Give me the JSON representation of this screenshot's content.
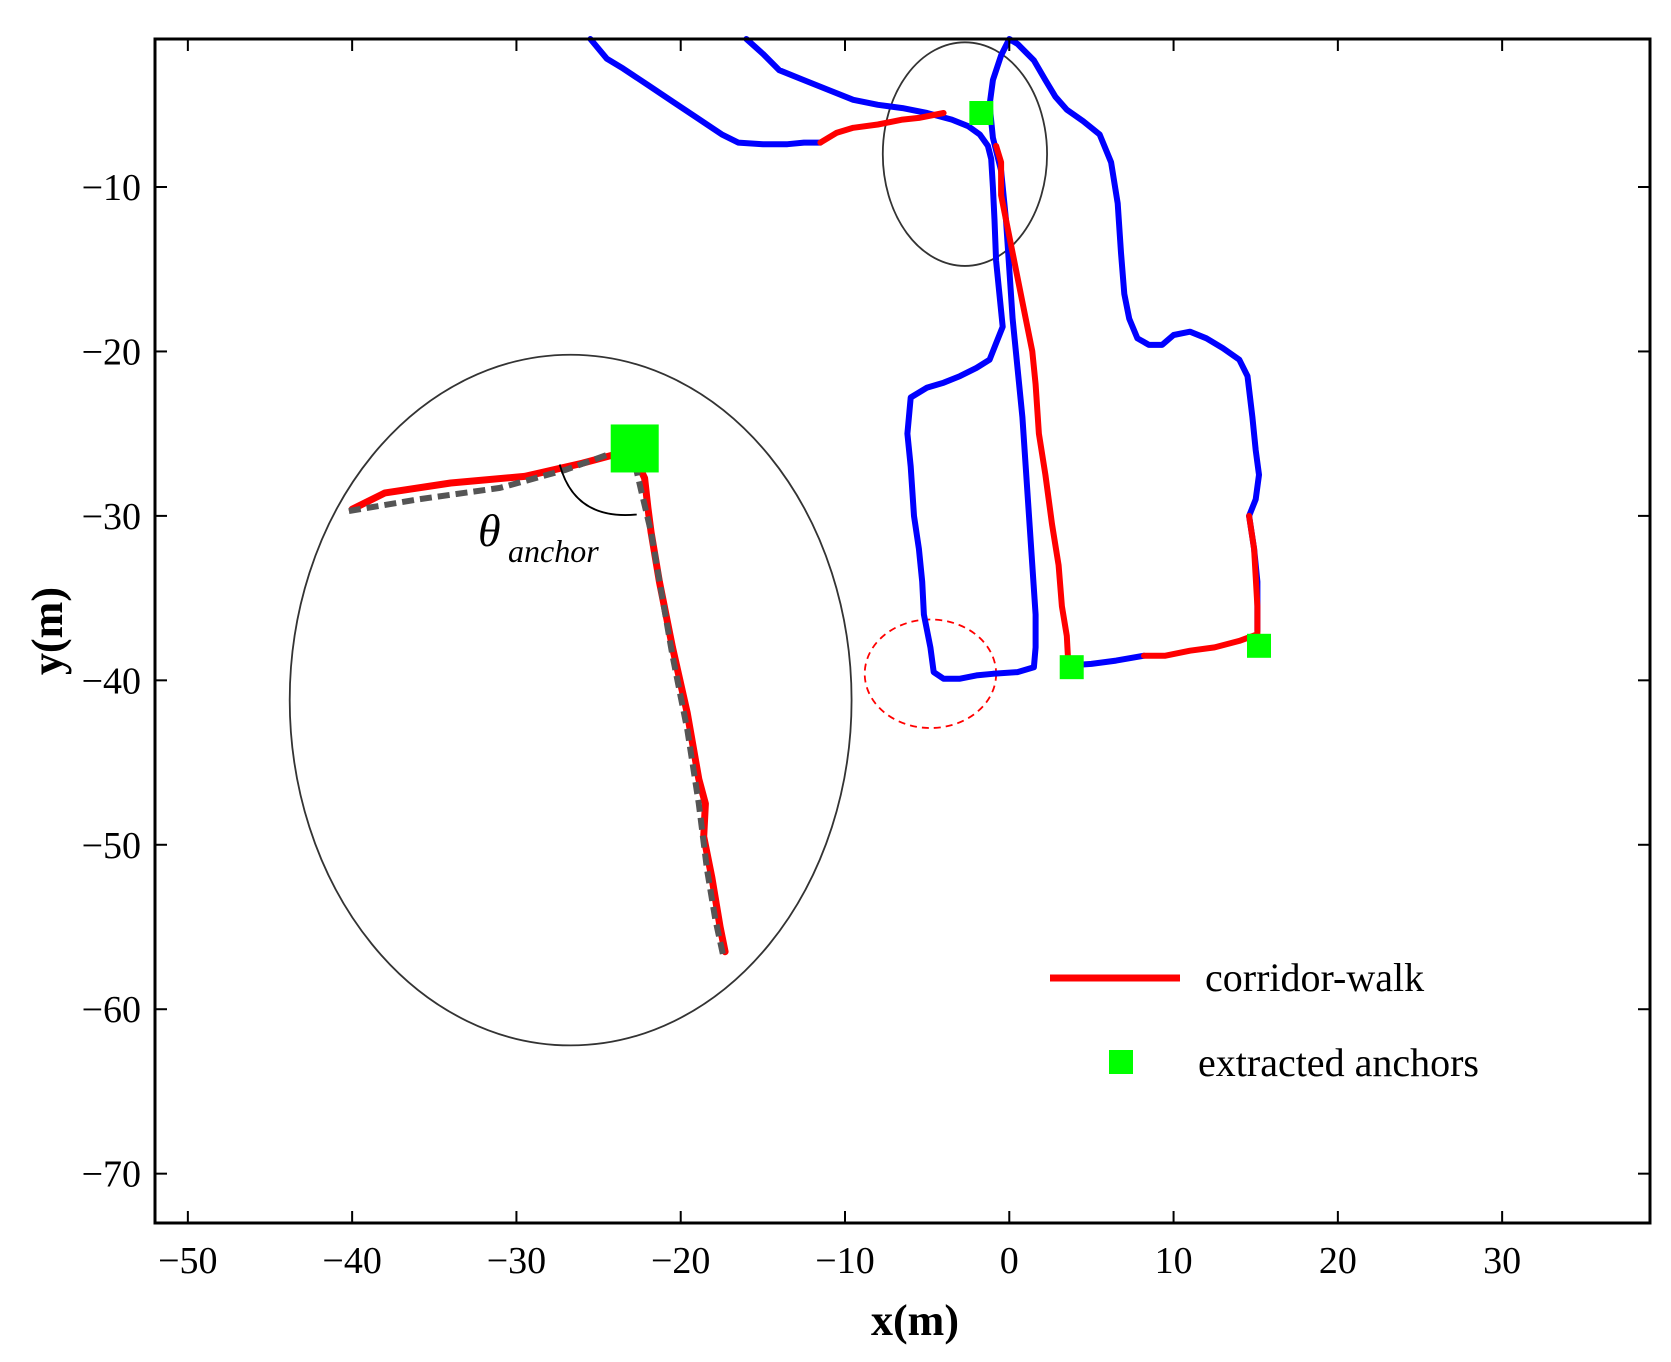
{
  "chart_data": {
    "type": "line",
    "xlabel": "x(m)",
    "ylabel": "y(m)",
    "xlim": [
      -52,
      39
    ],
    "ylim": [
      -73,
      -1
    ],
    "xticks": [
      -50,
      -40,
      -30,
      -20,
      -10,
      0,
      10,
      20,
      30
    ],
    "yticks": [
      -10,
      -20,
      -30,
      -40,
      -50,
      -60,
      -70
    ],
    "grid": false,
    "legend_position": "bottom-right",
    "colors": {
      "trajectory": "#0000ff",
      "corridor": "#ff0000",
      "anchor": "#00ff00",
      "zoom_trace": "#555555",
      "highlight_circle": "#ff0000",
      "ellipse": "#333333"
    },
    "series": [
      {
        "name": "corridor-walk",
        "role": "legend",
        "color": "#ff0000"
      },
      {
        "name": "extracted anchors",
        "role": "legend",
        "color": "#00ff00"
      }
    ],
    "trajectory": [
      [
        [
          -25.5,
          -1.0
        ],
        [
          -24.5,
          -2.2
        ],
        [
          -23.5,
          -2.8
        ],
        [
          -22.0,
          -3.8
        ],
        [
          -20.5,
          -4.8
        ],
        [
          -19.0,
          -5.8
        ],
        [
          -17.5,
          -6.8
        ],
        [
          -16.5,
          -7.3
        ],
        [
          -15.0,
          -7.4
        ],
        [
          -13.5,
          -7.4
        ],
        [
          -12.5,
          -7.3
        ],
        [
          -11.5,
          -7.3
        ]
      ],
      [
        [
          -16.0,
          -1.0
        ],
        [
          -15.0,
          -1.9
        ],
        [
          -14.0,
          -2.9
        ],
        [
          -12.5,
          -3.5
        ],
        [
          -11.0,
          -4.1
        ],
        [
          -9.5,
          -4.7
        ],
        [
          -8.0,
          -5.0
        ],
        [
          -6.5,
          -5.2
        ],
        [
          -5.0,
          -5.5
        ],
        [
          -3.5,
          -5.9
        ],
        [
          -2.5,
          -6.3
        ],
        [
          -1.8,
          -6.8
        ],
        [
          -1.3,
          -7.5
        ],
        [
          -1.1,
          -8.3
        ],
        [
          -1.0,
          -10.0
        ],
        [
          -0.9,
          -12.0
        ],
        [
          -0.8,
          -14.5
        ],
        [
          -0.6,
          -16.5
        ],
        [
          -0.4,
          -18.5
        ],
        [
          -0.8,
          -19.5
        ],
        [
          -1.2,
          -20.5
        ],
        [
          -2.0,
          -21.0
        ],
        [
          -3.0,
          -21.5
        ],
        [
          -4.0,
          -21.9
        ],
        [
          -5.0,
          -22.2
        ],
        [
          -6.0,
          -22.8
        ],
        [
          -6.2,
          -25.0
        ],
        [
          -6.0,
          -27.0
        ],
        [
          -5.8,
          -30.0
        ],
        [
          -5.5,
          -32.0
        ],
        [
          -5.3,
          -34.0
        ],
        [
          -5.2,
          -36.0
        ],
        [
          -4.8,
          -38.0
        ],
        [
          -4.6,
          -39.5
        ],
        [
          -4.0,
          -39.9
        ],
        [
          -3.0,
          -39.9
        ],
        [
          -2.0,
          -39.7
        ],
        [
          -1.0,
          -39.6
        ],
        [
          0.5,
          -39.5
        ],
        [
          1.5,
          -39.2
        ],
        [
          1.6,
          -38.0
        ],
        [
          1.6,
          -36.0
        ],
        [
          1.4,
          -33.0
        ],
        [
          1.2,
          -30.0
        ],
        [
          1.0,
          -27.0
        ],
        [
          0.8,
          -24.0
        ],
        [
          0.5,
          -21.0
        ],
        [
          0.2,
          -18.0
        ],
        [
          0.0,
          -15.0
        ],
        [
          -0.2,
          -12.0
        ],
        [
          -0.5,
          -9.0
        ],
        [
          -1.0,
          -7.0
        ],
        [
          -1.2,
          -5.0
        ],
        [
          -1.0,
          -3.5
        ],
        [
          -0.5,
          -2.0
        ],
        [
          0.0,
          -1.0
        ],
        [
          0.5,
          -1.3
        ],
        [
          1.5,
          -2.3
        ],
        [
          2.2,
          -3.5
        ],
        [
          2.8,
          -4.5
        ],
        [
          3.5,
          -5.3
        ],
        [
          4.5,
          -6.0
        ],
        [
          5.5,
          -6.8
        ],
        [
          6.2,
          -8.5
        ],
        [
          6.6,
          -11.0
        ],
        [
          6.8,
          -14.0
        ],
        [
          7.0,
          -16.5
        ],
        [
          7.3,
          -18.0
        ],
        [
          7.8,
          -19.2
        ],
        [
          8.5,
          -19.6
        ],
        [
          9.3,
          -19.6
        ],
        [
          10.0,
          -19.0
        ],
        [
          11.0,
          -18.8
        ],
        [
          12.0,
          -19.2
        ],
        [
          13.0,
          -19.8
        ],
        [
          14.0,
          -20.5
        ],
        [
          14.5,
          -21.5
        ],
        [
          14.8,
          -24.0
        ],
        [
          15.0,
          -26.0
        ],
        [
          15.2,
          -27.5
        ],
        [
          15.0,
          -29.0
        ],
        [
          14.6,
          -30.0
        ]
      ],
      [
        [
          14.6,
          -30.0
        ],
        [
          14.9,
          -32.0
        ],
        [
          15.1,
          -34.0
        ],
        [
          15.1,
          -35.5
        ],
        [
          15.1,
          -37.0
        ]
      ],
      [
        [
          3.6,
          -39.1
        ],
        [
          5.0,
          -39.0
        ],
        [
          6.5,
          -38.8
        ],
        [
          8.2,
          -38.5
        ]
      ]
    ],
    "corridor_walk": [
      [
        [
          -11.5,
          -7.3
        ],
        [
          -10.5,
          -6.7
        ],
        [
          -9.5,
          -6.4
        ],
        [
          -8.0,
          -6.2
        ],
        [
          -6.5,
          -5.9
        ],
        [
          -5.5,
          -5.8
        ],
        [
          -4.0,
          -5.5
        ]
      ],
      [
        [
          -0.8,
          -7.5
        ],
        [
          -0.5,
          -8.5
        ],
        [
          -0.5,
          -10.5
        ],
        [
          0.0,
          -13.0
        ],
        [
          0.5,
          -15.5
        ],
        [
          1.0,
          -18.0
        ],
        [
          1.4,
          -20.0
        ],
        [
          1.6,
          -22.0
        ],
        [
          1.8,
          -25.0
        ],
        [
          2.2,
          -27.5
        ],
        [
          2.6,
          -30.5
        ],
        [
          3.0,
          -33.0
        ],
        [
          3.2,
          -35.5
        ],
        [
          3.5,
          -37.3
        ],
        [
          3.6,
          -39.1
        ]
      ],
      [
        [
          8.2,
          -38.5
        ],
        [
          9.5,
          -38.5
        ],
        [
          11.0,
          -38.2
        ],
        [
          12.5,
          -38.0
        ],
        [
          14.0,
          -37.6
        ],
        [
          15.1,
          -37.2
        ],
        [
          15.1,
          -35.5
        ],
        [
          14.9,
          -32.0
        ],
        [
          14.6,
          -30.0
        ]
      ]
    ],
    "anchors": [
      [
        -1.7,
        -5.5
      ],
      [
        3.8,
        -39.2
      ],
      [
        15.2,
        -37.9
      ]
    ],
    "zoom_anchor": [
      -22.8,
      -25.9
    ],
    "zoom_red": [
      [
        -40.0,
        -29.6
      ],
      [
        -38.0,
        -28.6
      ],
      [
        -34.0,
        -28.0
      ],
      [
        -29.5,
        -27.6
      ],
      [
        -26.0,
        -26.8
      ],
      [
        -23.0,
        -26.0
      ],
      [
        -22.2,
        -27.7
      ],
      [
        -22.0,
        -29.5
      ],
      [
        -21.8,
        -31.0
      ],
      [
        -21.3,
        -34.0
      ],
      [
        -20.5,
        -38.0
      ],
      [
        -19.6,
        -42.0
      ],
      [
        -18.9,
        -46.0
      ],
      [
        -18.5,
        -47.5
      ],
      [
        -18.6,
        -49.5
      ],
      [
        -18.1,
        -52.0
      ],
      [
        -17.6,
        -55.0
      ],
      [
        -17.3,
        -56.5
      ]
    ],
    "zoom_dashed": [
      [
        -40.2,
        -29.7
      ],
      [
        -36.0,
        -29.0
      ],
      [
        -31.0,
        -28.3
      ],
      [
        -27.0,
        -27.2
      ],
      [
        -24.5,
        -26.3
      ],
      [
        -23.0,
        -25.9
      ],
      [
        -22.4,
        -28.5
      ],
      [
        -21.8,
        -31.0
      ],
      [
        -21.2,
        -34.5
      ],
      [
        -20.5,
        -38.5
      ],
      [
        -19.6,
        -43.0
      ],
      [
        -18.9,
        -47.5
      ],
      [
        -18.4,
        -51.5
      ],
      [
        -17.9,
        -54.5
      ],
      [
        -17.4,
        -56.8
      ]
    ],
    "annotation": {
      "theta": "θ",
      "subscript": "anchor"
    },
    "ellipses": {
      "top": {
        "cx": -2.7,
        "cy": -8.0,
        "rx": 5.0,
        "ry": 6.8
      },
      "big": {
        "cx": -26.7,
        "cy": -41.2,
        "rx": 17.1,
        "ry": 21.0
      },
      "dashed": {
        "cx": -4.8,
        "cy": -39.6,
        "rx": 4.0,
        "ry": 3.3
      }
    }
  }
}
